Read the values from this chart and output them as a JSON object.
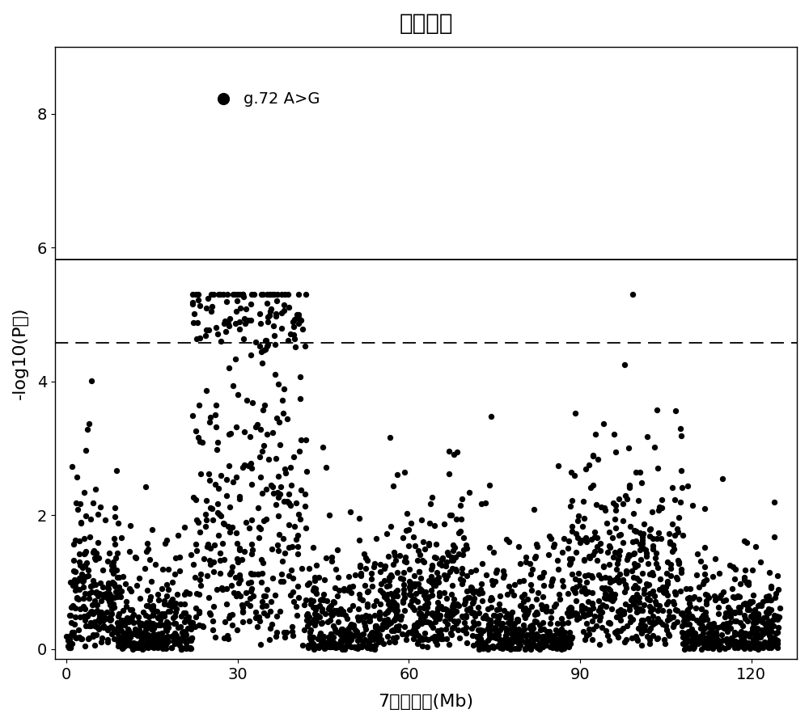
{
  "title": "眼肌厚度",
  "xlabel": "7号染色体(Mb)",
  "ylabel": "-log10(P值)",
  "xlim": [
    -2,
    128
  ],
  "ylim": [
    -0.15,
    9.0
  ],
  "xticks": [
    0,
    30,
    60,
    90,
    120
  ],
  "yticks": [
    0,
    2,
    4,
    6,
    8
  ],
  "solid_line_y": 5.82,
  "dashed_line_y": 4.58,
  "highlight_x": 27.5,
  "highlight_y": 8.22,
  "highlight_label": "g.72 A>G",
  "point_color": "#000000",
  "highlight_color": "#000000",
  "line_color": "#000000",
  "background_color": "#ffffff",
  "title_fontsize": 20,
  "label_fontsize": 16,
  "tick_fontsize": 14,
  "annotation_fontsize": 14,
  "seed": 42,
  "n_points": 2800,
  "figsize": [
    10.0,
    8.93
  ]
}
